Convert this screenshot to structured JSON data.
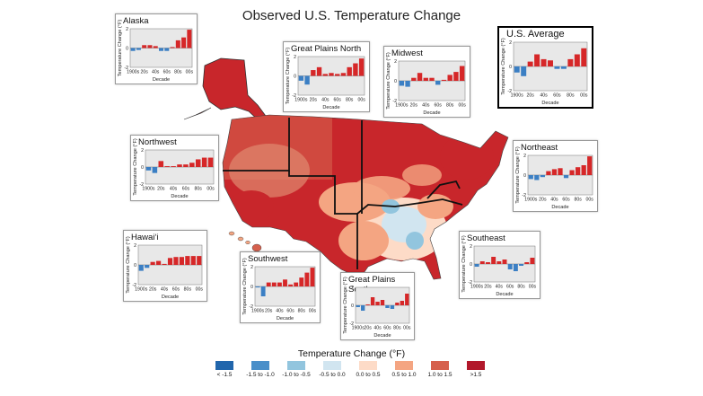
{
  "title": "Observed U.S. Temperature Change",
  "colors": {
    "positive_bar": "#d62728",
    "negative_bar": "#3b7fc4",
    "panel_bg": "#e8e8e8"
  },
  "legend": {
    "title": "Temperature Change (°F)",
    "items": [
      {
        "label": "< -1.5",
        "color": "#2166ac"
      },
      {
        "label": "-1.5 to -1.0",
        "color": "#4a8fc9"
      },
      {
        "label": "-1.0 to -0.5",
        "color": "#92c5de"
      },
      {
        "label": "-0.5 to 0.0",
        "color": "#d1e5f0"
      },
      {
        "label": "0.0 to 0.5",
        "color": "#fddbc7"
      },
      {
        "label": "0.5 to 1.0",
        "color": "#f4a582"
      },
      {
        "label": "1.0 to 1.5",
        "color": "#d6604d"
      },
      {
        "label": ">1.5",
        "color": "#b2182b"
      }
    ]
  },
  "chart_data": [
    {
      "type": "bar",
      "title": "Alaska",
      "xlabel": "Decade",
      "ylabel": "Temperature Change (°F)",
      "categories": [
        "1900s",
        "10s",
        "20s",
        "30s",
        "40s",
        "50s",
        "60s",
        "70s",
        "80s",
        "90s",
        "00s"
      ],
      "x_tick_labels": [
        "1900s",
        "20s",
        "40s",
        "60s",
        "80s",
        "00s"
      ],
      "y_ticks": [
        -2,
        0,
        2
      ],
      "ylim": [
        -2,
        2
      ],
      "values": [
        -0.3,
        -0.2,
        0.3,
        0.3,
        0.2,
        -0.3,
        -0.3,
        0.1,
        0.8,
        1.1,
        1.9
      ]
    },
    {
      "type": "bar",
      "title": "Great Plains North",
      "xlabel": "Decade",
      "ylabel": "Temperature Change (°F)",
      "categories": [
        "1900s",
        "10s",
        "20s",
        "30s",
        "40s",
        "50s",
        "60s",
        "70s",
        "80s",
        "90s",
        "00s"
      ],
      "x_tick_labels": [
        "1900s",
        "20s",
        "40s",
        "60s",
        "80s",
        "00s"
      ],
      "y_ticks": [
        -2,
        0,
        2
      ],
      "ylim": [
        -2,
        2
      ],
      "values": [
        -0.5,
        -0.9,
        0.6,
        0.9,
        0.2,
        0.3,
        0.2,
        0.3,
        0.9,
        1.3,
        1.8
      ]
    },
    {
      "type": "bar",
      "title": "Midwest",
      "xlabel": "Decade",
      "ylabel": "Temperature Change (°F)",
      "categories": [
        "1900s",
        "10s",
        "20s",
        "30s",
        "40s",
        "50s",
        "60s",
        "70s",
        "80s",
        "90s",
        "00s"
      ],
      "x_tick_labels": [
        "1900s",
        "20s",
        "40s",
        "60s",
        "80s",
        "00s"
      ],
      "y_ticks": [
        -2,
        0,
        2
      ],
      "ylim": [
        -2,
        2
      ],
      "values": [
        -0.5,
        -0.6,
        0.3,
        0.8,
        0.3,
        0.3,
        -0.4,
        0.1,
        0.6,
        0.9,
        1.5
      ]
    },
    {
      "type": "bar",
      "title": "U.S. Average",
      "xlabel": "Decade",
      "ylabel": "Temperature Change (°F)",
      "categories": [
        "1900s",
        "10s",
        "20s",
        "30s",
        "40s",
        "50s",
        "60s",
        "70s",
        "80s",
        "90s",
        "00s"
      ],
      "x_tick_labels": [
        "1900s",
        "20s",
        "40s",
        "60s",
        "80s",
        "00s"
      ],
      "y_ticks": [
        -2,
        0,
        2
      ],
      "ylim": [
        -2,
        2
      ],
      "values": [
        -0.5,
        -0.8,
        0.4,
        1.0,
        0.6,
        0.5,
        -0.2,
        -0.2,
        0.6,
        1.0,
        1.5
      ]
    },
    {
      "type": "bar",
      "title": "Northwest",
      "xlabel": "Decade",
      "ylabel": "Temperature Change (°F)",
      "categories": [
        "1900s",
        "10s",
        "20s",
        "30s",
        "40s",
        "50s",
        "60s",
        "70s",
        "80s",
        "90s",
        "00s"
      ],
      "x_tick_labels": [
        "1900s",
        "20s",
        "40s",
        "60s",
        "80s",
        "00s"
      ],
      "y_ticks": [
        -2,
        0,
        2
      ],
      "ylim": [
        -2,
        2
      ],
      "values": [
        -0.4,
        -0.7,
        0.7,
        0.1,
        0.1,
        0.3,
        0.3,
        0.5,
        0.9,
        1.1,
        1.1
      ]
    },
    {
      "type": "bar",
      "title": "Northeast",
      "xlabel": "Decade",
      "ylabel": "Temperature Change (°F)",
      "categories": [
        "1900s",
        "10s",
        "20s",
        "30s",
        "40s",
        "50s",
        "60s",
        "70s",
        "80s",
        "90s",
        "00s"
      ],
      "x_tick_labels": [
        "1900s",
        "20s",
        "40s",
        "60s",
        "80s",
        "00s"
      ],
      "y_ticks": [
        -2,
        0,
        2
      ],
      "ylim": [
        -2,
        2
      ],
      "values": [
        -0.4,
        -0.5,
        -0.2,
        0.4,
        0.6,
        0.7,
        -0.3,
        0.5,
        0.8,
        1.0,
        1.9
      ]
    },
    {
      "type": "bar",
      "title": "Hawai‘i",
      "xlabel": "Decade",
      "ylabel": "Temperature Change (°F)",
      "categories": [
        "1900s",
        "10s",
        "20s",
        "30s",
        "40s",
        "50s",
        "60s",
        "70s",
        "80s",
        "90s",
        "00s"
      ],
      "x_tick_labels": [
        "1900s",
        "20s",
        "40s",
        "60s",
        "80s",
        "00s"
      ],
      "y_ticks": [
        -2,
        0,
        2
      ],
      "ylim": [
        -2,
        2
      ],
      "values": [
        -0.6,
        -0.3,
        0.3,
        0.4,
        0.1,
        0.7,
        0.8,
        0.8,
        0.9,
        0.9,
        0.9
      ]
    },
    {
      "type": "bar",
      "title": "Southwest",
      "xlabel": "Decade",
      "ylabel": "Temperature Change (°F)",
      "categories": [
        "1900s",
        "10s",
        "20s",
        "30s",
        "40s",
        "50s",
        "60s",
        "70s",
        "80s",
        "90s",
        "00s"
      ],
      "x_tick_labels": [
        "1900s",
        "20s",
        "40s",
        "60s",
        "80s",
        "00s"
      ],
      "y_ticks": [
        -2,
        0,
        2
      ],
      "ylim": [
        -2,
        2
      ],
      "values": [
        -0.1,
        -1.0,
        0.4,
        0.4,
        0.4,
        0.7,
        0.2,
        0.4,
        0.9,
        1.4,
        1.9
      ]
    },
    {
      "type": "bar",
      "title": "Southeast",
      "xlabel": "Decade",
      "ylabel": "Temperature Change (°F)",
      "categories": [
        "1900s",
        "10s",
        "20s",
        "30s",
        "40s",
        "50s",
        "60s",
        "70s",
        "80s",
        "90s",
        "00s"
      ],
      "x_tick_labels": [
        "1900s",
        "20s",
        "40s",
        "60s",
        "80s",
        "00s"
      ],
      "y_ticks": [
        -2,
        0,
        2
      ],
      "ylim": [
        -2,
        2
      ],
      "values": [
        -0.3,
        0.3,
        0.2,
        0.8,
        0.3,
        0.5,
        -0.6,
        -0.8,
        -0.2,
        0.2,
        0.7
      ]
    },
    {
      "type": "bar",
      "title": "Great Plains South",
      "xlabel": "Decade",
      "ylabel": "Temperature Change (°F)",
      "categories": [
        "1900s",
        "10s",
        "20s",
        "30s",
        "40s",
        "50s",
        "60s",
        "70s",
        "80s",
        "90s",
        "00s"
      ],
      "x_tick_labels": [
        "1900s",
        "20s",
        "40s",
        "60s",
        "80s",
        "00s"
      ],
      "y_ticks": [
        -2,
        0,
        2
      ],
      "ylim": [
        -2,
        2
      ],
      "values": [
        -0.2,
        -0.6,
        0.1,
        0.9,
        0.4,
        0.6,
        -0.3,
        -0.4,
        0.3,
        0.5,
        1.3
      ]
    }
  ]
}
